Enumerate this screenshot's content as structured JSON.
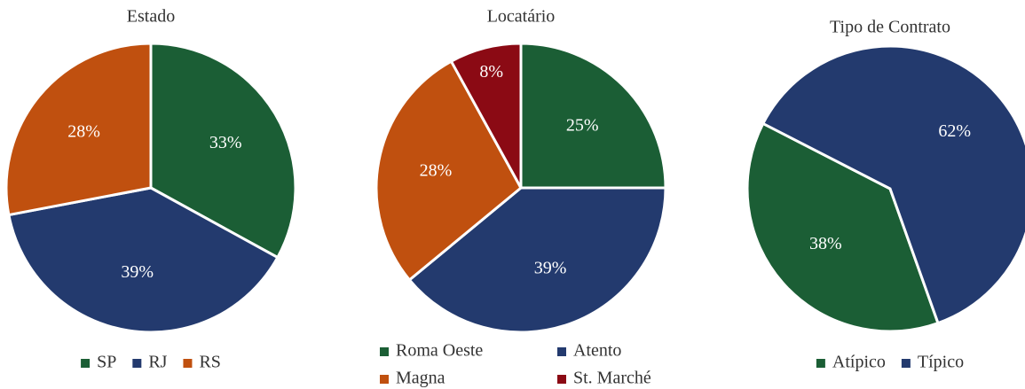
{
  "chart_data": [
    {
      "type": "pie",
      "title": "Estado",
      "categories": [
        "SP",
        "RJ",
        "RS"
      ],
      "values": [
        33,
        39,
        28
      ],
      "value_labels": [
        "33%",
        "39%",
        "28%"
      ],
      "colors": [
        "#1b5e35",
        "#233a6e",
        "#c0500f"
      ],
      "legend": "bottom"
    },
    {
      "type": "pie",
      "title": "Locatário",
      "categories": [
        "Roma Oeste",
        "Atento",
        "Magna",
        "St. Marché"
      ],
      "values": [
        25,
        39,
        28,
        8
      ],
      "value_labels": [
        "25%",
        "39%",
        "28%",
        "8%"
      ],
      "colors": [
        "#1b5e35",
        "#233a6e",
        "#c0500f",
        "#8b0a14"
      ],
      "legend": "bottom"
    },
    {
      "type": "pie",
      "title": "Tipo de Contrato",
      "categories": [
        "Atípico",
        "Típico"
      ],
      "values": [
        38,
        62
      ],
      "value_labels": [
        "38%",
        "62%"
      ],
      "colors": [
        "#1b5e35",
        "#233a6e"
      ],
      "legend": "bottom"
    }
  ]
}
